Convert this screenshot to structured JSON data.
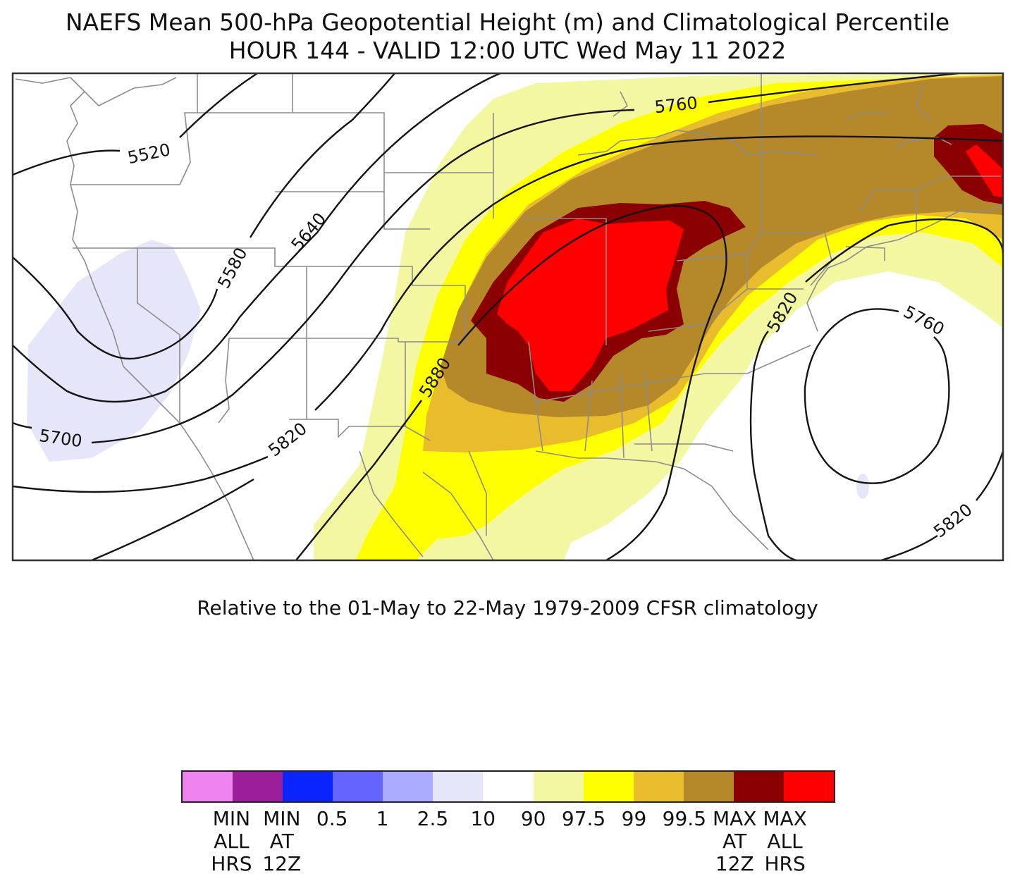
{
  "title_line1": "NAEFS Mean 500-hPa Geopotential Height (m) and Climatological Percentile",
  "title_line2": "HOUR 144 - VALID 12:00 UTC Wed May 11 2022",
  "subtitle": "Relative to the 01-May to 22-May 1979-2009 CFSR climatology",
  "contour_labels": [
    "5520",
    "5580",
    "5640",
    "5700",
    "5760",
    "5760",
    "5820",
    "5820",
    "5820",
    "5880"
  ],
  "legend": {
    "colors": [
      "#ee82ee",
      "#9b1f9b",
      "#0a24ff",
      "#6464ff",
      "#aaaaff",
      "#e6e6fb",
      "#ffffff",
      "#f3f7a2",
      "#ffff00",
      "#e9bc2e",
      "#b5892a",
      "#8b0000",
      "#ff0000"
    ],
    "labels": [
      "MIN\nALL\nHRS",
      "MIN\nAT\n12Z",
      "0.5",
      "1",
      "2.5",
      "10",
      "90",
      "97.5",
      "99",
      "99.5",
      "MAX\nAT\n12Z",
      "MAX\nALL\nHRS"
    ]
  }
}
